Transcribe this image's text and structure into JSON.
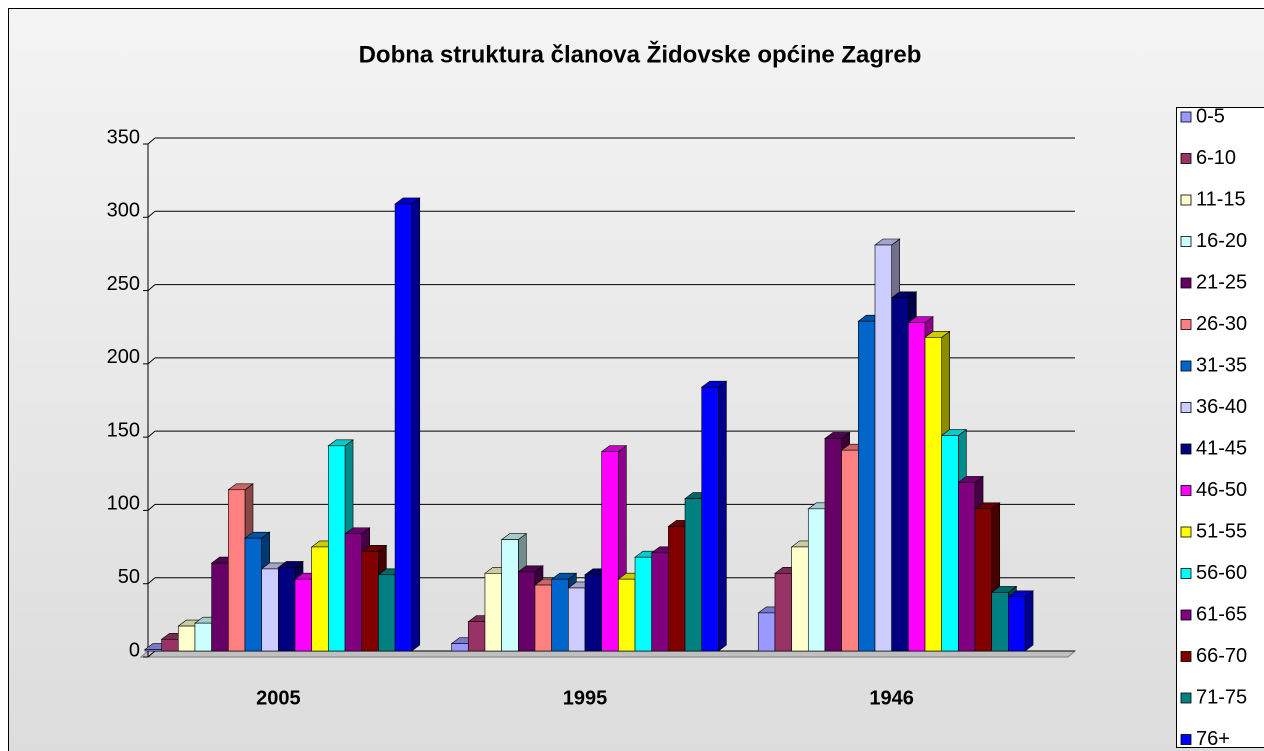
{
  "chart_data": {
    "type": "bar",
    "title": "Dobna struktura članova Židovske općine Zagreb",
    "categories": [
      "2005",
      "1995",
      "1946"
    ],
    "ylim": [
      0,
      350
    ],
    "yticks": [
      0,
      50,
      100,
      150,
      200,
      250,
      300,
      350
    ],
    "grid": true,
    "legend": "right",
    "series": [
      {
        "name": "0-5",
        "color": "#9999ff",
        "values": [
          1,
          5,
          26
        ]
      },
      {
        "name": "6-10",
        "color": "#993366",
        "values": [
          8,
          20,
          53
        ]
      },
      {
        "name": "11-15",
        "color": "#ffffcc",
        "values": [
          17,
          53,
          71
        ]
      },
      {
        "name": "16-20",
        "color": "#ccffff",
        "values": [
          19,
          76,
          97
        ]
      },
      {
        "name": "21-25",
        "color": "#660066",
        "values": [
          60,
          54,
          145
        ]
      },
      {
        "name": "26-30",
        "color": "#ff8080",
        "values": [
          110,
          45,
          137
        ]
      },
      {
        "name": "31-35",
        "color": "#0066cc",
        "values": [
          77,
          49,
          225
        ]
      },
      {
        "name": "36-40",
        "color": "#ccccff",
        "values": [
          56,
          43,
          277
        ]
      },
      {
        "name": "41-45",
        "color": "#000080",
        "values": [
          57,
          52,
          241
        ]
      },
      {
        "name": "46-50",
        "color": "#ff00ff",
        "values": [
          49,
          136,
          224
        ]
      },
      {
        "name": "51-55",
        "color": "#ffff00",
        "values": [
          71,
          49,
          214
        ]
      },
      {
        "name": "56-60",
        "color": "#00ffff",
        "values": [
          140,
          64,
          147
        ]
      },
      {
        "name": "61-65",
        "color": "#800080",
        "values": [
          80,
          67,
          115
        ]
      },
      {
        "name": "66-70",
        "color": "#800000",
        "values": [
          68,
          85,
          97
        ]
      },
      {
        "name": "71-75",
        "color": "#008080",
        "values": [
          52,
          104,
          40
        ]
      },
      {
        "name": "76+",
        "color": "#0000ff",
        "values": [
          305,
          180,
          37
        ]
      }
    ]
  }
}
